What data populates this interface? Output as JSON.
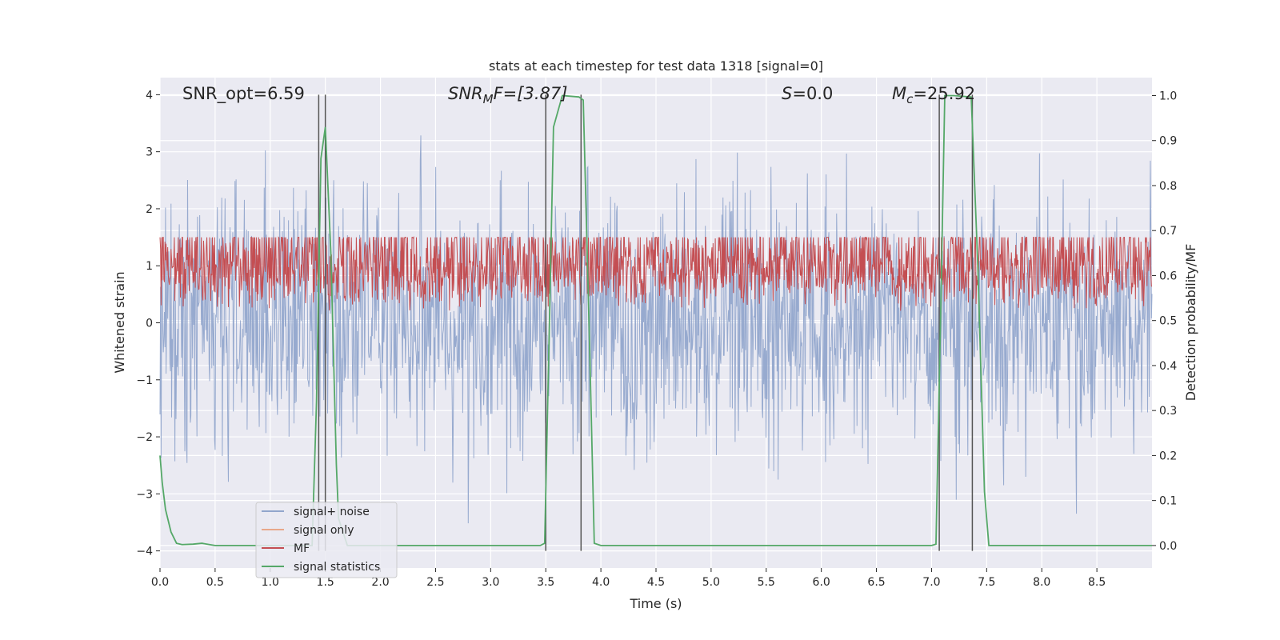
{
  "chart_data": {
    "type": "line",
    "title": "stats at each timestep for test data 1318 [signal=0]",
    "xlabel": "Time (s)",
    "ylabel_left": "Whitened strain",
    "ylabel_right": "Detection probability/MF",
    "xlim": [
      0,
      9
    ],
    "ylim_left": [
      -4.3,
      4.3
    ],
    "ylim_right": [
      -0.05,
      1.04
    ],
    "x_ticks": [
      "0.0",
      "0.5",
      "1.0",
      "1.5",
      "2.0",
      "2.5",
      "3.0",
      "3.5",
      "4.0",
      "4.5",
      "5.0",
      "5.5",
      "6.0",
      "6.5",
      "7.0",
      "7.5",
      "8.0",
      "8.5"
    ],
    "y_ticks_left": [
      "4",
      "3",
      "2",
      "1",
      "0",
      "−1",
      "−2",
      "−3",
      "−4"
    ],
    "y_ticks_right": [
      "1.0",
      "0.9",
      "0.8",
      "0.7",
      "0.6",
      "0.5",
      "0.4",
      "0.3",
      "0.2",
      "0.1",
      "0.0"
    ],
    "annotations": {
      "snr_opt": "SNR_opt=6.59",
      "snr_mf_main": "SNR",
      "snr_mf_sub": "M",
      "snr_mf_rest": "F=[3.87]",
      "s_main": "S",
      "s_rest": "=0.0",
      "mc_main": "M",
      "mc_sub": "c",
      "mc_rest": "=25.92"
    },
    "legend": [
      {
        "label": "signal+ noise",
        "color": "#92a6cc"
      },
      {
        "label": "signal only",
        "color": "#e8a88a"
      },
      {
        "label": "MF",
        "color": "#c44e52"
      },
      {
        "label": "signal statistics",
        "color": "#55a868"
      }
    ],
    "vlines_x": [
      1.44,
      1.5,
      3.5,
      3.82,
      7.07,
      7.37
    ],
    "noise": {
      "n": 1800,
      "seed": 1318,
      "spread": 1.05,
      "clip": 3.95
    },
    "mf": {
      "n": 1800,
      "seed": 77,
      "base": 0.55,
      "amp": 0.2
    },
    "signal_statistics": {
      "x": [
        0.0,
        0.02,
        0.05,
        0.1,
        0.15,
        0.2,
        0.3,
        0.38,
        0.45,
        0.5,
        0.7,
        1.0,
        1.3,
        1.38,
        1.42,
        1.46,
        1.5,
        1.55,
        1.6,
        1.62,
        1.7,
        2.0,
        3.0,
        3.45,
        3.49,
        3.53,
        3.57,
        3.65,
        3.8,
        3.84,
        3.9,
        3.94,
        4.0,
        5.0,
        7.0,
        7.04,
        7.08,
        7.12,
        7.2,
        7.36,
        7.42,
        7.48,
        7.52,
        8.0,
        9.0
      ],
      "y": [
        0.2,
        0.14,
        0.08,
        0.03,
        0.005,
        0.002,
        0.003,
        0.005,
        0.002,
        0.0,
        0.0,
        0.0,
        0.0,
        0.0,
        0.32,
        0.86,
        0.93,
        0.65,
        0.18,
        0.06,
        0.0,
        0.0,
        0.0,
        0.0,
        0.005,
        0.46,
        0.93,
        1.0,
        0.997,
        0.99,
        0.42,
        0.005,
        0.0,
        0.0,
        0.0,
        0.003,
        0.48,
        1.0,
        1.0,
        0.997,
        0.62,
        0.12,
        0.0,
        0.0,
        0.0
      ]
    }
  }
}
